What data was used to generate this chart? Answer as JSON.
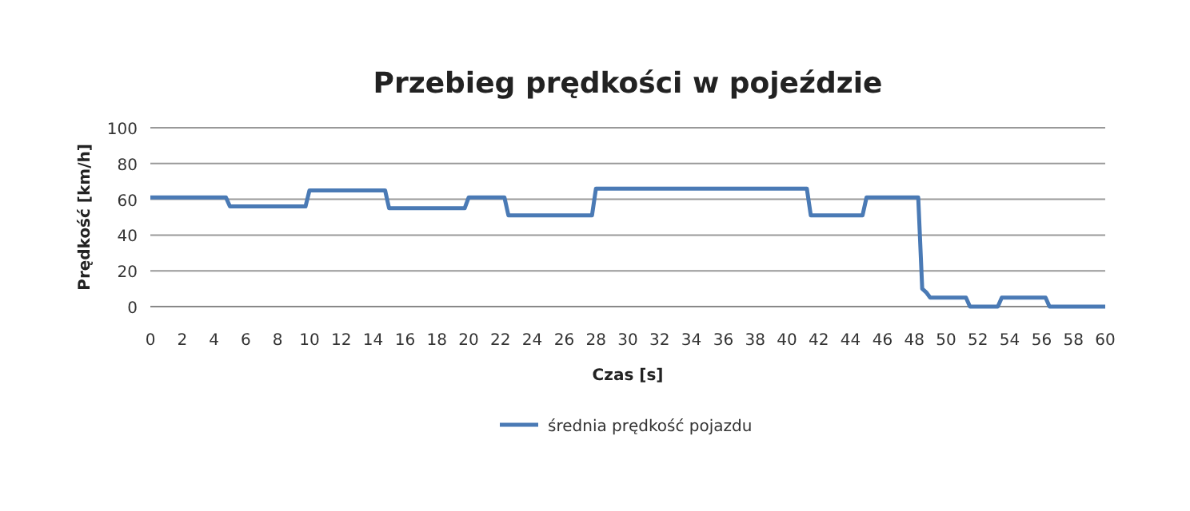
{
  "chart_data": {
    "type": "line",
    "title": "Przebieg prędkości w pojeździe",
    "xlabel": "Czas [s]",
    "ylabel": "Prędkość [km/h]",
    "x": [
      0,
      4.75,
      5,
      9.75,
      10,
      14.75,
      15,
      19.75,
      20,
      22.25,
      22.5,
      27.75,
      28,
      41.25,
      41.5,
      44.75,
      45,
      48.25,
      48.5,
      48.75,
      49,
      51.25,
      51.5,
      53.25,
      53.5,
      56.25,
      56.5,
      60
    ],
    "series": [
      {
        "name": "średnia prędkość pojazdu",
        "color": "#4a7ab5",
        "values": [
          61,
          61,
          56,
          56,
          65,
          65,
          55,
          55,
          61,
          61,
          51,
          51,
          66,
          66,
          51,
          51,
          61,
          61,
          10,
          8,
          5,
          5,
          0,
          0,
          5,
          5,
          0,
          0
        ]
      }
    ],
    "xlim": [
      0,
      60
    ],
    "xticks": [
      0,
      2,
      4,
      6,
      8,
      10,
      12,
      14,
      16,
      18,
      20,
      22,
      24,
      26,
      28,
      30,
      32,
      34,
      36,
      38,
      40,
      42,
      44,
      46,
      48,
      50,
      52,
      54,
      56,
      58,
      60
    ],
    "ylim": [
      0,
      100
    ],
    "yticks": [
      0,
      20,
      40,
      60,
      80,
      100
    ],
    "grid": "y",
    "legend": "bottom",
    "marker": "none",
    "line_style": "solid"
  }
}
